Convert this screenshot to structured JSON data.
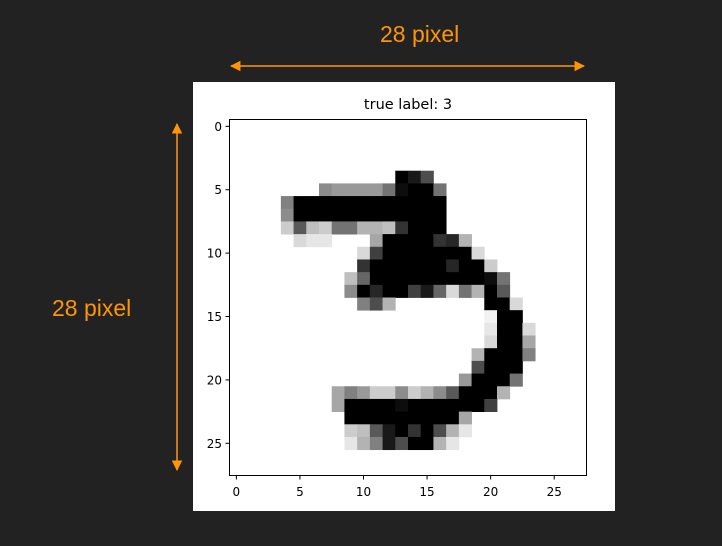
{
  "dimension_labels": {
    "width": "28 pixel",
    "height": "28 pixel",
    "color": "#ff9408"
  },
  "panel": {
    "background": "#ffffff",
    "page_background": "#222222"
  },
  "chart_data": {
    "type": "heatmap",
    "title": "true label: 3",
    "colormap": "grayscale (white = 0, black = 1)",
    "grid": false,
    "xlim": [
      -0.5,
      27.5
    ],
    "ylim": [
      27.5,
      -0.5
    ],
    "x_ticks": [
      0,
      5,
      10,
      15,
      20,
      25
    ],
    "y_ticks": [
      0,
      5,
      10,
      15,
      20,
      25
    ],
    "pixels": [
      {
        "row": 4,
        "cols": [
          13,
          14,
          15
        ],
        "values": [
          1.0,
          0.9,
          0.7
        ]
      },
      {
        "row": 5,
        "cols": [
          7,
          8,
          9,
          10,
          11,
          12,
          13,
          14,
          15,
          16
        ],
        "values": [
          0.45,
          0.4,
          0.4,
          0.4,
          0.4,
          0.55,
          0.95,
          1.0,
          1.0,
          0.55
        ]
      },
      {
        "row": 6,
        "cols": [
          4,
          5,
          6,
          7,
          8,
          9,
          10,
          11,
          12,
          13,
          14,
          15,
          16
        ],
        "values": [
          0.5,
          1.0,
          1.0,
          1.0,
          1.0,
          1.0,
          1.0,
          1.0,
          1.0,
          1.0,
          1.0,
          1.0,
          1.0
        ]
      },
      {
        "row": 7,
        "cols": [
          4,
          5,
          6,
          7,
          8,
          9,
          10,
          11,
          12,
          13,
          14,
          15,
          16
        ],
        "values": [
          0.45,
          1.0,
          1.0,
          1.0,
          1.0,
          1.0,
          1.0,
          1.0,
          1.0,
          1.0,
          1.0,
          1.0,
          1.0
        ]
      },
      {
        "row": 8,
        "cols": [
          4,
          5,
          6,
          7,
          8,
          9,
          10,
          11,
          12,
          13,
          14,
          15,
          16
        ],
        "values": [
          0.2,
          0.65,
          0.25,
          0.2,
          0.55,
          0.55,
          0.3,
          0.3,
          0.25,
          0.8,
          1.0,
          1.0,
          1.0
        ]
      },
      {
        "row": 9,
        "cols": [
          5,
          6,
          7,
          11,
          12,
          13,
          14,
          15,
          16,
          17,
          18
        ],
        "values": [
          0.15,
          0.1,
          0.1,
          0.35,
          1.0,
          1.0,
          1.0,
          1.0,
          0.8,
          0.85,
          0.3
        ]
      },
      {
        "row": 10,
        "cols": [
          10,
          11,
          12,
          13,
          14,
          15,
          16,
          17,
          18,
          19
        ],
        "values": [
          0.15,
          0.75,
          1.0,
          1.0,
          1.0,
          1.0,
          1.0,
          1.0,
          1.0,
          0.15
        ]
      },
      {
        "row": 11,
        "cols": [
          10,
          11,
          12,
          13,
          14,
          15,
          16,
          17,
          18,
          19,
          20
        ],
        "values": [
          0.8,
          1.0,
          1.0,
          1.0,
          1.0,
          1.0,
          1.0,
          0.85,
          1.0,
          1.0,
          0.2
        ]
      },
      {
        "row": 12,
        "cols": [
          9,
          10,
          11,
          12,
          13,
          14,
          15,
          16,
          17,
          18,
          19,
          20,
          21
        ],
        "values": [
          0.25,
          0.6,
          1.0,
          1.0,
          1.0,
          1.0,
          1.0,
          1.0,
          1.0,
          1.0,
          1.0,
          0.95,
          0.55
        ]
      },
      {
        "row": 13,
        "cols": [
          9,
          10,
          11,
          12,
          13,
          14,
          15,
          16,
          17,
          18,
          19,
          20,
          21
        ],
        "values": [
          0.45,
          1.0,
          0.85,
          1.0,
          1.0,
          0.75,
          0.9,
          0.6,
          0.15,
          0.55,
          0.3,
          1.0,
          0.65
        ]
      },
      {
        "row": 14,
        "cols": [
          10,
          11,
          12,
          20,
          21,
          22
        ],
        "values": [
          0.5,
          0.7,
          0.3,
          1.0,
          1.0,
          0.15
        ]
      },
      {
        "row": 15,
        "cols": [
          20,
          21,
          22
        ],
        "values": [
          0.05,
          1.0,
          1.0
        ]
      },
      {
        "row": 16,
        "cols": [
          20,
          21,
          22,
          23
        ],
        "values": [
          0.1,
          1.0,
          1.0,
          0.15
        ]
      },
      {
        "row": 17,
        "cols": [
          20,
          21,
          22,
          23
        ],
        "values": [
          0.15,
          1.0,
          1.0,
          0.35
        ]
      },
      {
        "row": 18,
        "cols": [
          19,
          20,
          21,
          22,
          23
        ],
        "values": [
          0.3,
          1.0,
          1.0,
          1.0,
          0.5
        ]
      },
      {
        "row": 19,
        "cols": [
          19,
          20,
          21,
          22
        ],
        "values": [
          0.7,
          1.0,
          1.0,
          1.0
        ]
      },
      {
        "row": 20,
        "cols": [
          18,
          19,
          20,
          21,
          22
        ],
        "values": [
          0.4,
          1.0,
          1.0,
          1.0,
          0.55
        ]
      },
      {
        "row": 21,
        "cols": [
          8,
          9,
          10,
          11,
          12,
          13,
          14,
          15,
          16,
          17,
          18,
          19,
          20,
          21
        ],
        "values": [
          0.35,
          0.5,
          0.4,
          0.2,
          0.2,
          0.45,
          0.2,
          0.3,
          0.45,
          0.65,
          1.0,
          1.0,
          1.0,
          0.3
        ]
      },
      {
        "row": 22,
        "cols": [
          8,
          9,
          10,
          11,
          12,
          13,
          14,
          15,
          16,
          17,
          18,
          19,
          20
        ],
        "values": [
          0.35,
          1.0,
          1.0,
          1.0,
          1.0,
          0.95,
          1.0,
          1.0,
          1.0,
          1.0,
          1.0,
          1.0,
          0.75
        ]
      },
      {
        "row": 23,
        "cols": [
          9,
          10,
          11,
          12,
          13,
          14,
          15,
          16,
          17,
          18
        ],
        "values": [
          1.0,
          1.0,
          1.0,
          1.0,
          1.0,
          1.0,
          1.0,
          1.0,
          1.0,
          0.35
        ]
      },
      {
        "row": 24,
        "cols": [
          9,
          10,
          11,
          12,
          13,
          14,
          15,
          16,
          17,
          18
        ],
        "values": [
          0.2,
          0.25,
          0.65,
          0.9,
          1.0,
          0.8,
          1.0,
          0.7,
          0.3,
          0.1
        ]
      },
      {
        "row": 25,
        "cols": [
          9,
          10,
          11,
          12,
          13,
          14,
          15,
          16,
          17
        ],
        "values": [
          0.1,
          0.3,
          0.5,
          0.9,
          0.7,
          1.0,
          1.0,
          0.3,
          0.1
        ]
      }
    ]
  }
}
